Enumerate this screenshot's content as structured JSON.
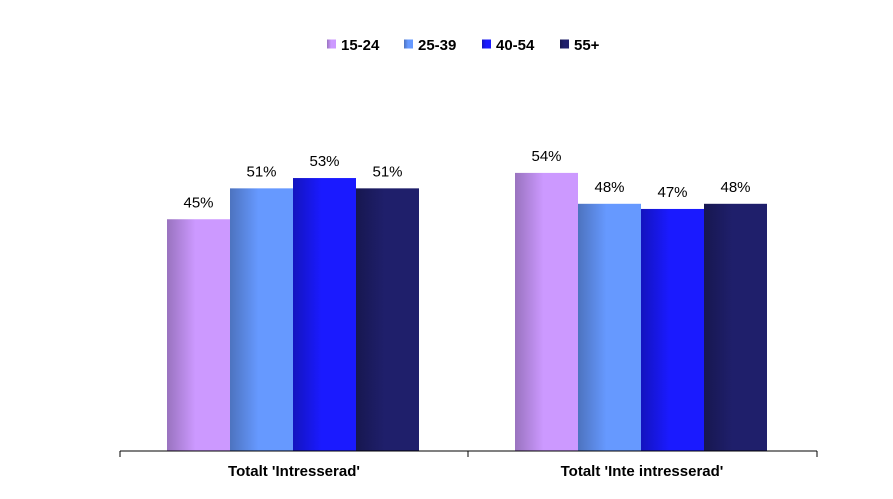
{
  "chart_data": {
    "type": "bar",
    "categories": [
      "Totalt 'Intresserad'",
      "Totalt 'Inte intresserad'"
    ],
    "series": [
      {
        "name": "15-24",
        "values": [
          45,
          54
        ],
        "color": "#cc99ff"
      },
      {
        "name": "25-39",
        "values": [
          51,
          48
        ],
        "color": "#6699ff"
      },
      {
        "name": "40-54",
        "values": [
          53,
          47
        ],
        "color": "#1a1aff"
      },
      {
        "name": "55+",
        "values": [
          51,
          48
        ],
        "color": "#1f1f6b"
      }
    ],
    "value_suffix": "%",
    "ylim": [
      0,
      60
    ],
    "grid": false,
    "legend_position": "top"
  }
}
